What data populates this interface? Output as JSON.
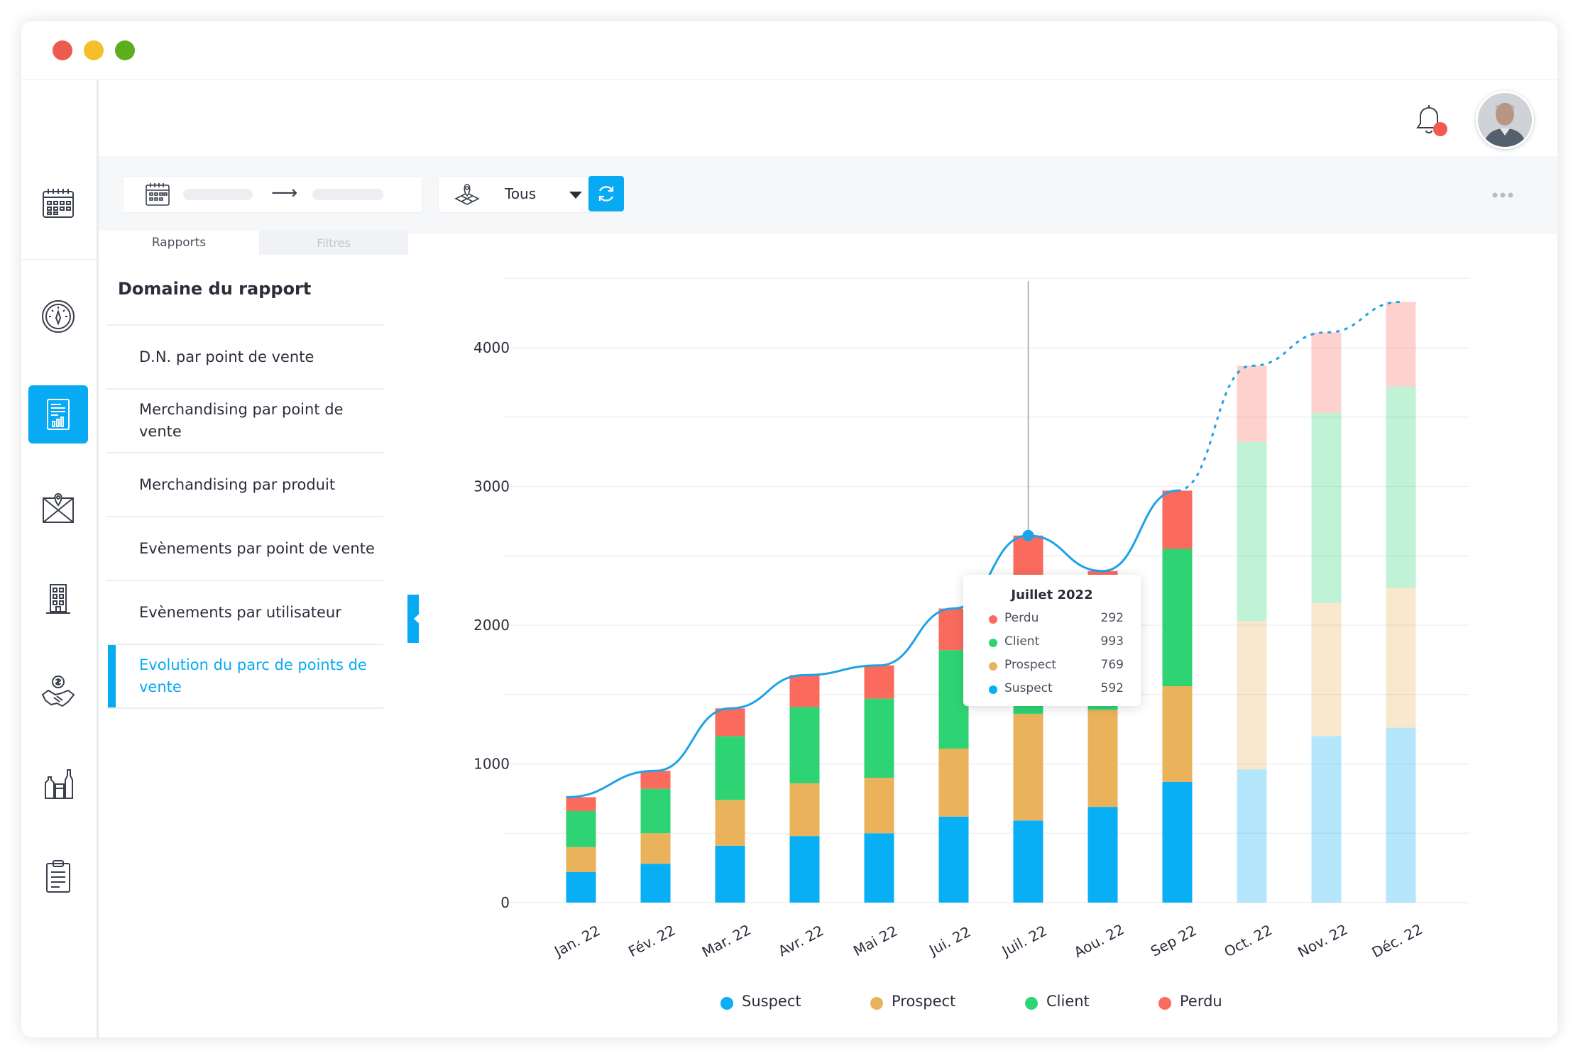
{
  "window": {
    "controls": [
      {
        "name": "close",
        "color": "#ec5b4e"
      },
      {
        "name": "minimize",
        "color": "#f6bf29"
      },
      {
        "name": "maximize",
        "color": "#5dad1c"
      }
    ]
  },
  "sidebar": {
    "items": [
      {
        "icon": "calendar-icon",
        "active": false
      },
      {
        "icon": "dashboard-gauge-icon",
        "active": false
      },
      {
        "icon": "report-icon",
        "active": true
      },
      {
        "icon": "map-icon",
        "active": false
      },
      {
        "icon": "building-icon",
        "active": false
      },
      {
        "icon": "handshake-dollar-icon",
        "active": false
      },
      {
        "icon": "products-bottles-icon",
        "active": false
      },
      {
        "icon": "clipboard-icon",
        "active": false
      }
    ]
  },
  "header": {
    "notification_icon": "bell-icon",
    "notification_badge_color": "#f25a4f",
    "avatar_icon": "user-avatar"
  },
  "toolbar": {
    "date_icon": "calendar-icon",
    "arrow": "⟶",
    "store_icon": "map-pin-icon",
    "store_value": "Tous",
    "refresh_icon": "refresh-icon",
    "more_icon": "ellipsis-icon"
  },
  "tabs": [
    {
      "label": "Rapports",
      "active": true
    },
    {
      "label": "Filtres",
      "active": false
    }
  ],
  "report_panel": {
    "title": "Domaine du rapport",
    "items": [
      {
        "label": "D.N. par point de vente",
        "active": false
      },
      {
        "label": "Merchandising par point de vente",
        "active": false
      },
      {
        "label": "Merchandising par produit",
        "active": false
      },
      {
        "label": "Evènements par point de vente",
        "active": false
      },
      {
        "label": "Evènements par utilisateur",
        "active": false
      },
      {
        "label": "Evolution du parc de points de vente",
        "active": true
      }
    ]
  },
  "colors": {
    "accent": "#08aaf4",
    "suspect": "#08aff5",
    "prospect": "#eab25a",
    "client": "#2ed474",
    "perdu": "#fa6b5e"
  },
  "chart_data": {
    "type": "bar",
    "stacked": true,
    "title": "",
    "xlabel": "",
    "ylabel": "",
    "ylim": [
      0,
      4500
    ],
    "yticks": [
      0,
      1000,
      2000,
      3000,
      4000
    ],
    "grid": true,
    "legend_position": "bottom",
    "categories": [
      "Jan. 22",
      "Fév. 22",
      "Mar. 22",
      "Avr. 22",
      "Mai 22",
      "Jui. 22",
      "Juil. 22",
      "Aou. 22",
      "Sep 22",
      "Oct. 22",
      "Nov. 22",
      "Déc. 22"
    ],
    "projected_from_index": 9,
    "series": [
      {
        "name": "Suspect",
        "color": "#08aff5",
        "values": [
          220,
          280,
          410,
          480,
          500,
          620,
          592,
          690,
          870,
          960,
          1200,
          1260
        ]
      },
      {
        "name": "Prospect",
        "color": "#eab25a",
        "values": [
          180,
          220,
          330,
          380,
          400,
          490,
          769,
          700,
          690,
          1070,
          960,
          1010
        ]
      },
      {
        "name": "Client",
        "color": "#2ed474",
        "values": [
          260,
          320,
          460,
          550,
          570,
          710,
          993,
          720,
          990,
          1290,
          1370,
          1450
        ]
      },
      {
        "name": "Perdu",
        "color": "#fa6b5e",
        "values": [
          100,
          130,
          200,
          230,
          240,
          300,
          292,
          280,
          420,
          550,
          580,
          610
        ]
      }
    ],
    "trend_line": {
      "color": "#1ea3e6",
      "solid_until_index": 8,
      "highlight_index": 6
    },
    "tooltip": {
      "title": "Juillet 2022",
      "rows": [
        {
          "name": "Perdu",
          "value": "292",
          "color": "#fa6b5e"
        },
        {
          "name": "Client",
          "value": "993",
          "color": "#2ed474"
        },
        {
          "name": "Prospect",
          "value": "769",
          "color": "#eab25a"
        },
        {
          "name": "Suspect",
          "value": "592",
          "color": "#08aff5"
        }
      ]
    }
  }
}
